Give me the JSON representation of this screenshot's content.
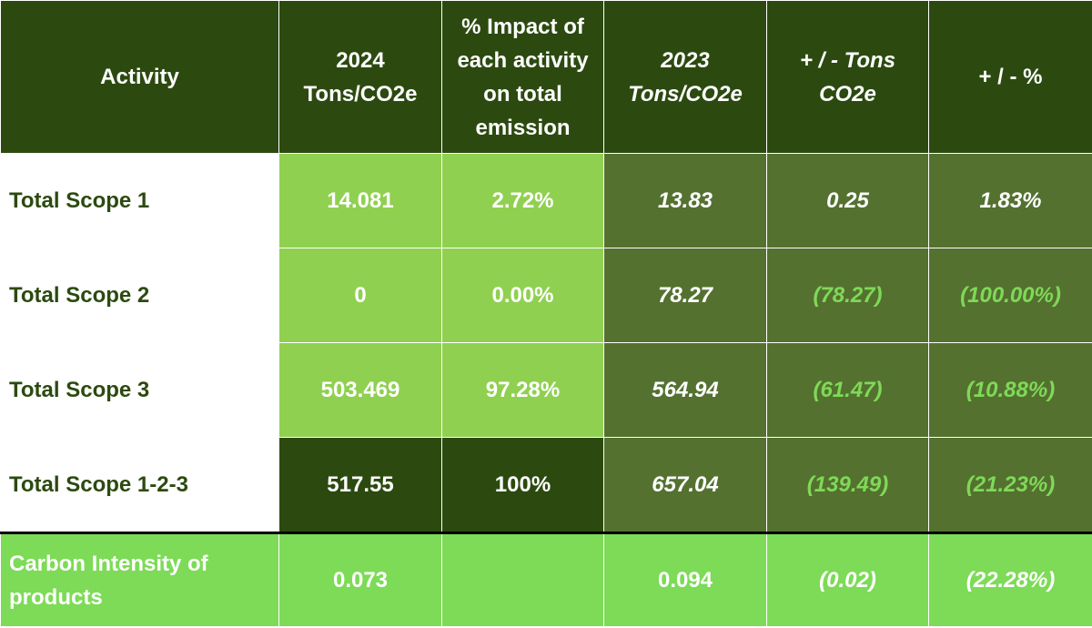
{
  "headers": [
    "Activity",
    "2024 Tons/CO2e",
    "% Impact of each activity on total emission",
    "2023 Tons/CO2e",
    "+ / - Tons CO2e",
    "+ / - %"
  ],
  "rows": [
    {
      "activity": "Total Scope 1",
      "t2024": "14.081",
      "impact": "2.72%",
      "t2023": "13.83",
      "diff_tons": "0.25",
      "diff_pct": "1.83%"
    },
    {
      "activity": "Total Scope 2",
      "t2024": "0",
      "impact": "0.00%",
      "t2023": "78.27",
      "diff_tons": "(78.27)",
      "diff_pct": "(100.00%)"
    },
    {
      "activity": "Total Scope 3",
      "t2024": "503.469",
      "impact": "97.28%",
      "t2023": "564.94",
      "diff_tons": "(61.47)",
      "diff_pct": "(10.88%)"
    },
    {
      "activity": "Total Scope 1-2-3",
      "t2024": "517.55",
      "impact": "100%",
      "t2023": "657.04",
      "diff_tons": "(139.49)",
      "diff_pct": "(21.23%)"
    }
  ],
  "carbon": {
    "activity": "Carbon Intensity of products",
    "t2024": "0.073",
    "impact": "",
    "t2023": "0.094",
    "diff_tons": "(0.02)",
    "diff_pct": "(22.28%)"
  },
  "colors": {
    "header_bg": "#2c4a10",
    "light_green": "#90d050",
    "mid_green": "#547130",
    "bright_green": "#7ddb57",
    "negative_text": "#7fd957",
    "label_text": "#2c4a10"
  }
}
